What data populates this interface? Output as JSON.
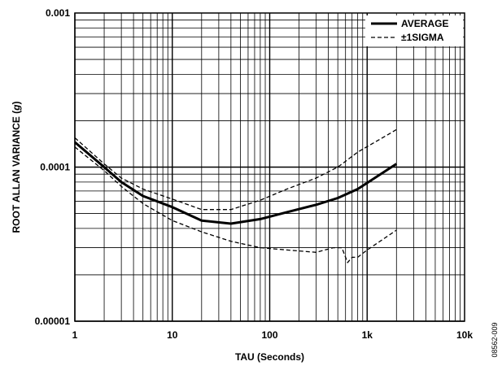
{
  "chart_data": {
    "type": "line",
    "xlabel": "TAU (Seconds)",
    "ylabel": "ROOT ALLAN VARIANCE (",
    "ylabel_unit": "g",
    "ylabel_close": ")",
    "x_scale": "log",
    "y_scale": "log",
    "xlim": [
      1,
      10000
    ],
    "ylim": [
      1e-05,
      0.001
    ],
    "x_ticks": [
      1,
      10,
      100,
      1000,
      10000
    ],
    "x_tick_labels": [
      "1",
      "10",
      "100",
      "1k",
      "10k"
    ],
    "y_ticks": [
      1e-05,
      0.0001,
      0.001
    ],
    "y_tick_labels": [
      "0.00001",
      "0.0001",
      "0.001"
    ],
    "grid": true,
    "legend_position": "top-right",
    "figure_id": "08562-009",
    "series": [
      {
        "name": "AVERAGE",
        "style": "solid",
        "x": [
          1,
          2,
          3,
          5,
          10,
          20,
          40,
          80,
          150,
          300,
          500,
          800,
          2000
        ],
        "y": [
          0.000145,
          0.0001,
          8e-05,
          6.5e-05,
          5.5e-05,
          4.5e-05,
          4.3e-05,
          4.6e-05,
          5.1e-05,
          5.7e-05,
          6.3e-05,
          7.2e-05,
          0.000105
        ]
      },
      {
        "name": "±1SIGMA",
        "style": "dashed",
        "x": [
          1,
          2,
          3,
          5,
          10,
          20,
          40,
          80,
          150,
          300,
          500,
          800,
          2000
        ],
        "y": [
          0.000155,
          0.000105,
          8.5e-05,
          7.2e-05,
          6.2e-05,
          5.3e-05,
          5.3e-05,
          6.1e-05,
          7.2e-05,
          8.5e-05,
          0.0001,
          0.000125,
          0.000175
        ]
      },
      {
        "name": "±1SIGMA",
        "style": "dashed",
        "x": [
          1,
          2,
          3,
          5,
          10,
          20,
          40,
          80,
          150,
          300,
          450,
          550,
          630,
          700,
          800,
          1000,
          2000
        ],
        "y": [
          0.000135,
          9.5e-05,
          7.5e-05,
          5.8e-05,
          4.5e-05,
          3.8e-05,
          3.3e-05,
          3e-05,
          2.9e-05,
          2.8e-05,
          3e-05,
          3e-05,
          2.4e-05,
          2.6e-05,
          2.6e-05,
          2.9e-05,
          3.9e-05
        ]
      }
    ]
  }
}
